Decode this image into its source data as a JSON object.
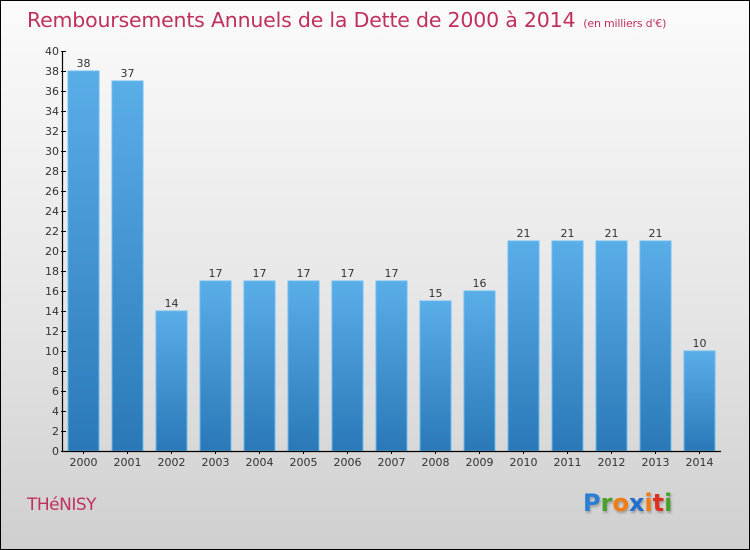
{
  "header": {
    "title": "Remboursements Annuels de la Dette de 2000 à 2014",
    "subtitle": "(en milliers d'€)"
  },
  "footer": {
    "town": "THéNISY",
    "logo": {
      "letters": [
        {
          "char": "P",
          "color": "#2a7fd4"
        },
        {
          "char": "r",
          "color": "#4aa02c"
        },
        {
          "char": "o",
          "color": "#f07d12"
        },
        {
          "char": "x",
          "color": "#1f6fd0"
        },
        {
          "char": "i",
          "color": "#f07d12"
        },
        {
          "char": "t",
          "color": "#e03020"
        },
        {
          "char": "i",
          "color": "#4aa02c"
        }
      ]
    }
  },
  "colors": {
    "title": "#c0305e",
    "bar_top": "#5aaee8",
    "bar_bottom": "#2a78b8",
    "bar_edge": "#6bbcf0"
  },
  "chart_data": {
    "type": "bar",
    "title": "Remboursements Annuels de la Dette de 2000 à 2014",
    "subtitle": "(en milliers d'€)",
    "xlabel": "",
    "ylabel": "",
    "categories": [
      "2000",
      "2001",
      "2002",
      "2003",
      "2004",
      "2005",
      "2006",
      "2007",
      "2008",
      "2009",
      "2010",
      "2011",
      "2012",
      "2013",
      "2014"
    ],
    "values": [
      38,
      37,
      14,
      17,
      17,
      17,
      17,
      17,
      15,
      16,
      21,
      21,
      21,
      21,
      10
    ],
    "ylim": [
      0,
      40
    ],
    "yticks": [
      0,
      2,
      4,
      6,
      8,
      10,
      12,
      14,
      16,
      18,
      20,
      22,
      24,
      26,
      28,
      30,
      32,
      34,
      36,
      38,
      40
    ],
    "grid": false,
    "legend": "none",
    "data_labels": true
  }
}
